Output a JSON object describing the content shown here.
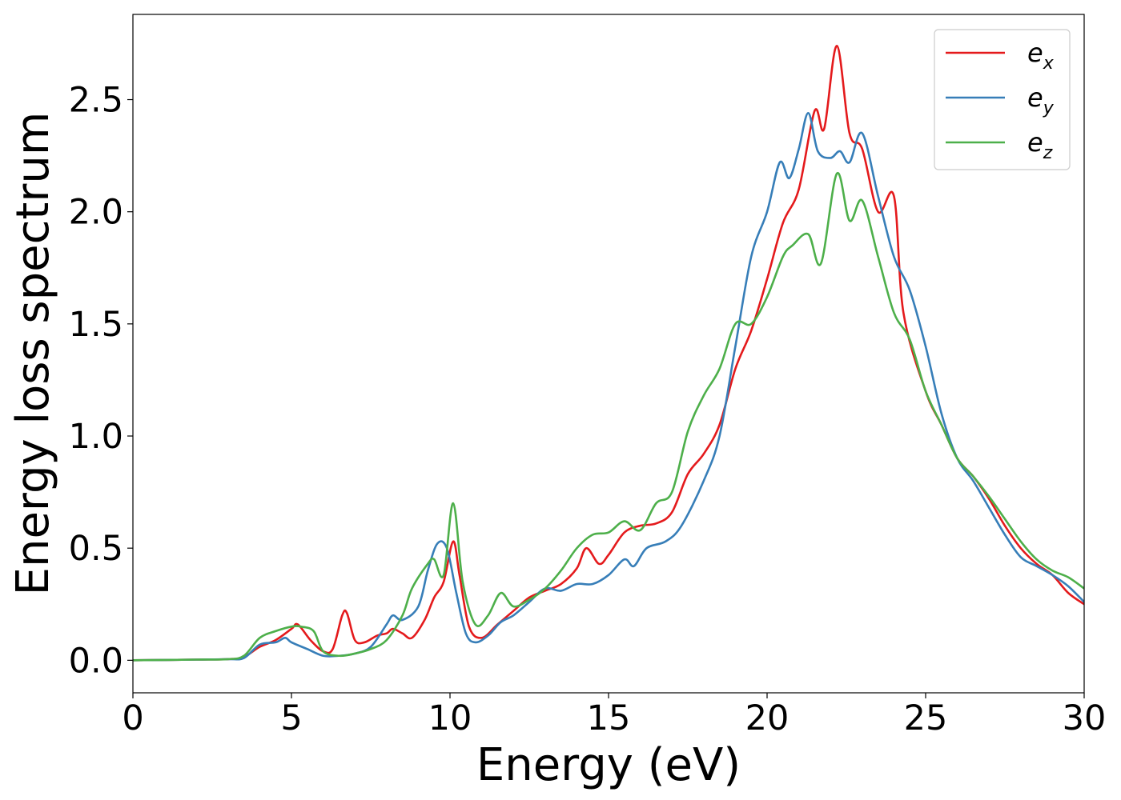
{
  "chart_data": {
    "type": "line",
    "title": "",
    "xlabel": "Energy (eV)",
    "ylabel": "Energy loss spectrum",
    "xlim": [
      0,
      30
    ],
    "ylim": [
      -0.145,
      2.88
    ],
    "xticks": [
      0,
      5,
      10,
      15,
      20,
      25,
      30
    ],
    "xtick_labels": [
      "0",
      "5",
      "10",
      "15",
      "20",
      "25",
      "30"
    ],
    "yticks": [
      0.0,
      0.5,
      1.0,
      1.5,
      2.0,
      2.5
    ],
    "ytick_labels": [
      "0.0",
      "0.5",
      "1.0",
      "1.5",
      "2.0",
      "2.5"
    ],
    "grid": false,
    "legend_position": "top-right",
    "series": [
      {
        "name": "e",
        "subscript": "x",
        "color": "#e41a1c",
        "points": [
          [
            0,
            0
          ],
          [
            2,
            0.003
          ],
          [
            3,
            0.005
          ],
          [
            3.5,
            0.015
          ],
          [
            4,
            0.06
          ],
          [
            4.5,
            0.09
          ],
          [
            5,
            0.14
          ],
          [
            5.2,
            0.16
          ],
          [
            5.6,
            0.09
          ],
          [
            6,
            0.04
          ],
          [
            6.3,
            0.05
          ],
          [
            6.6,
            0.2
          ],
          [
            6.75,
            0.21
          ],
          [
            7,
            0.09
          ],
          [
            7.3,
            0.08
          ],
          [
            7.7,
            0.11
          ],
          [
            8,
            0.12
          ],
          [
            8.2,
            0.14
          ],
          [
            8.5,
            0.12
          ],
          [
            8.8,
            0.1
          ],
          [
            9.2,
            0.18
          ],
          [
            9.5,
            0.28
          ],
          [
            9.8,
            0.35
          ],
          [
            10.1,
            0.53
          ],
          [
            10.3,
            0.38
          ],
          [
            10.6,
            0.15
          ],
          [
            11,
            0.1
          ],
          [
            11.5,
            0.16
          ],
          [
            12,
            0.22
          ],
          [
            12.5,
            0.28
          ],
          [
            13,
            0.31
          ],
          [
            13.5,
            0.34
          ],
          [
            14,
            0.41
          ],
          [
            14.3,
            0.5
          ],
          [
            14.7,
            0.43
          ],
          [
            15,
            0.47
          ],
          [
            15.5,
            0.57
          ],
          [
            16,
            0.6
          ],
          [
            16.5,
            0.61
          ],
          [
            17,
            0.66
          ],
          [
            17.5,
            0.83
          ],
          [
            18,
            0.92
          ],
          [
            18.5,
            1.05
          ],
          [
            19,
            1.3
          ],
          [
            19.5,
            1.47
          ],
          [
            20,
            1.7
          ],
          [
            20.5,
            1.95
          ],
          [
            21,
            2.1
          ],
          [
            21.5,
            2.45
          ],
          [
            21.8,
            2.37
          ],
          [
            22.2,
            2.74
          ],
          [
            22.6,
            2.35
          ],
          [
            23,
            2.28
          ],
          [
            23.5,
            2.0
          ],
          [
            24,
            2.07
          ],
          [
            24.3,
            1.55
          ],
          [
            25,
            1.2
          ],
          [
            25.5,
            1.05
          ],
          [
            26,
            0.9
          ],
          [
            26.5,
            0.82
          ],
          [
            27,
            0.72
          ],
          [
            27.5,
            0.6
          ],
          [
            28,
            0.5
          ],
          [
            28.5,
            0.43
          ],
          [
            29,
            0.38
          ],
          [
            29.5,
            0.3
          ],
          [
            30,
            0.25
          ]
        ]
      },
      {
        "name": "e",
        "subscript": "y",
        "color": "#377eb8",
        "points": [
          [
            0,
            0
          ],
          [
            2,
            0.003
          ],
          [
            3,
            0.005
          ],
          [
            3.5,
            0.01
          ],
          [
            4,
            0.07
          ],
          [
            4.5,
            0.08
          ],
          [
            4.8,
            0.1
          ],
          [
            5,
            0.08
          ],
          [
            5.5,
            0.05
          ],
          [
            6,
            0.02
          ],
          [
            6.5,
            0.02
          ],
          [
            7,
            0.03
          ],
          [
            7.5,
            0.06
          ],
          [
            8,
            0.16
          ],
          [
            8.2,
            0.2
          ],
          [
            8.5,
            0.18
          ],
          [
            9,
            0.24
          ],
          [
            9.3,
            0.4
          ],
          [
            9.6,
            0.52
          ],
          [
            9.9,
            0.5
          ],
          [
            10.2,
            0.3
          ],
          [
            10.5,
            0.12
          ],
          [
            10.8,
            0.08
          ],
          [
            11.2,
            0.11
          ],
          [
            11.6,
            0.17
          ],
          [
            12,
            0.2
          ],
          [
            12.5,
            0.26
          ],
          [
            13,
            0.32
          ],
          [
            13.5,
            0.31
          ],
          [
            14,
            0.34
          ],
          [
            14.5,
            0.34
          ],
          [
            15,
            0.38
          ],
          [
            15.5,
            0.45
          ],
          [
            15.8,
            0.42
          ],
          [
            16.2,
            0.5
          ],
          [
            16.8,
            0.53
          ],
          [
            17.3,
            0.6
          ],
          [
            18,
            0.8
          ],
          [
            18.5,
            1.0
          ],
          [
            19,
            1.4
          ],
          [
            19.5,
            1.8
          ],
          [
            20,
            2.0
          ],
          [
            20.4,
            2.22
          ],
          [
            20.7,
            2.15
          ],
          [
            21,
            2.28
          ],
          [
            21.3,
            2.44
          ],
          [
            21.6,
            2.27
          ],
          [
            22,
            2.24
          ],
          [
            22.3,
            2.27
          ],
          [
            22.6,
            2.22
          ],
          [
            23,
            2.35
          ],
          [
            23.5,
            2.07
          ],
          [
            24,
            1.8
          ],
          [
            24.5,
            1.65
          ],
          [
            25,
            1.4
          ],
          [
            25.5,
            1.1
          ],
          [
            26,
            0.9
          ],
          [
            26.5,
            0.8
          ],
          [
            27,
            0.68
          ],
          [
            27.5,
            0.56
          ],
          [
            28,
            0.46
          ],
          [
            28.5,
            0.42
          ],
          [
            29,
            0.38
          ],
          [
            29.5,
            0.33
          ],
          [
            30,
            0.26
          ]
        ]
      },
      {
        "name": "e",
        "subscript": "z",
        "color": "#4daf4a",
        "points": [
          [
            0,
            0
          ],
          [
            2,
            0.003
          ],
          [
            3,
            0.005
          ],
          [
            3.5,
            0.02
          ],
          [
            4,
            0.1
          ],
          [
            4.5,
            0.13
          ],
          [
            5,
            0.15
          ],
          [
            5.3,
            0.15
          ],
          [
            5.7,
            0.13
          ],
          [
            6,
            0.04
          ],
          [
            6.5,
            0.02
          ],
          [
            7,
            0.03
          ],
          [
            7.5,
            0.05
          ],
          [
            8,
            0.09
          ],
          [
            8.5,
            0.2
          ],
          [
            8.8,
            0.32
          ],
          [
            9.3,
            0.43
          ],
          [
            9.5,
            0.45
          ],
          [
            9.8,
            0.38
          ],
          [
            10.1,
            0.7
          ],
          [
            10.4,
            0.35
          ],
          [
            10.8,
            0.16
          ],
          [
            11.2,
            0.2
          ],
          [
            11.6,
            0.3
          ],
          [
            12,
            0.24
          ],
          [
            12.5,
            0.27
          ],
          [
            13,
            0.32
          ],
          [
            13.5,
            0.4
          ],
          [
            14,
            0.5
          ],
          [
            14.5,
            0.56
          ],
          [
            15,
            0.57
          ],
          [
            15.5,
            0.62
          ],
          [
            16,
            0.58
          ],
          [
            16.5,
            0.7
          ],
          [
            17,
            0.75
          ],
          [
            17.5,
            1.02
          ],
          [
            18,
            1.18
          ],
          [
            18.5,
            1.3
          ],
          [
            19,
            1.5
          ],
          [
            19.5,
            1.5
          ],
          [
            20,
            1.62
          ],
          [
            20.5,
            1.8
          ],
          [
            20.8,
            1.85
          ],
          [
            21.3,
            1.9
          ],
          [
            21.7,
            1.77
          ],
          [
            22.2,
            2.17
          ],
          [
            22.6,
            1.96
          ],
          [
            23,
            2.05
          ],
          [
            23.5,
            1.8
          ],
          [
            24,
            1.55
          ],
          [
            24.5,
            1.43
          ],
          [
            25,
            1.2
          ],
          [
            25.5,
            1.05
          ],
          [
            26,
            0.9
          ],
          [
            26.5,
            0.82
          ],
          [
            27,
            0.73
          ],
          [
            27.5,
            0.63
          ],
          [
            28,
            0.53
          ],
          [
            28.5,
            0.45
          ],
          [
            29,
            0.4
          ],
          [
            29.5,
            0.37
          ],
          [
            30,
            0.32
          ]
        ]
      }
    ]
  }
}
